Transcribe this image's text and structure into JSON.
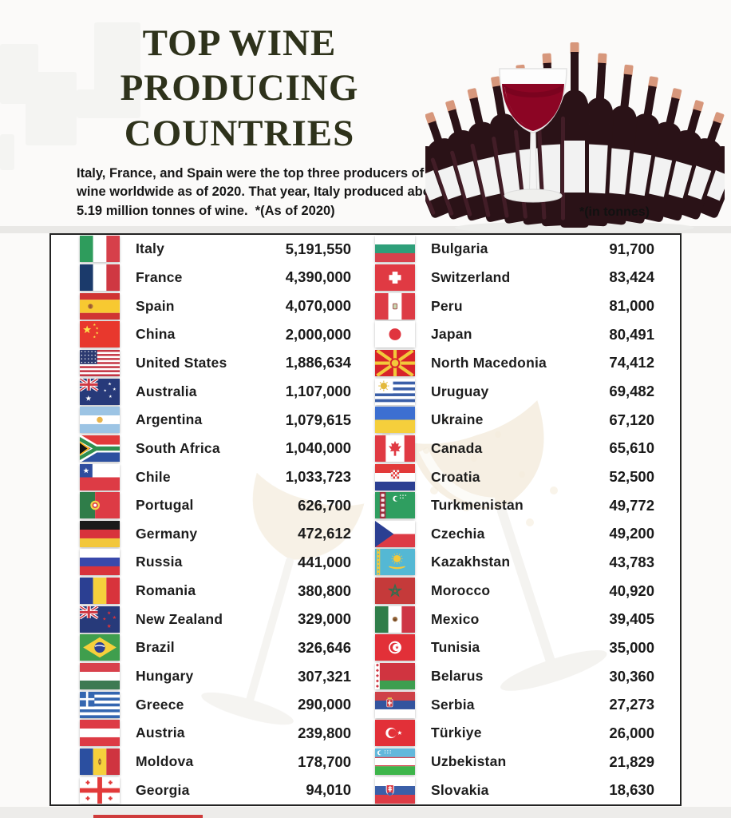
{
  "header": {
    "title_lines": [
      "TOP WINE",
      "PRODUCING",
      "COUNTRIES"
    ],
    "subtitle": "Italy, France, and Spain were the top three producers of wine worldwide as of 2020. That year, Italy produced about 5.19 million tonnes of wine.",
    "subtitle_note": "*(As of 2020)",
    "unit_note": "*(in tonnes)"
  },
  "colors": {
    "title": "#2e321b",
    "text": "#1d1d1d",
    "wine_red": "#8c0524",
    "panel_border": "#232323"
  },
  "table": {
    "left": [
      {
        "country": "Italy",
        "value": "5,191,550",
        "flag": "italy"
      },
      {
        "country": "France",
        "value": "4,390,000",
        "flag": "france"
      },
      {
        "country": "Spain",
        "value": "4,070,000",
        "flag": "spain"
      },
      {
        "country": "China",
        "value": "2,000,000",
        "flag": "china"
      },
      {
        "country": "United States",
        "value": "1,886,634",
        "flag": "united-states"
      },
      {
        "country": "Australia",
        "value": "1,107,000",
        "flag": "australia"
      },
      {
        "country": "Argentina",
        "value": "1,079,615",
        "flag": "argentina"
      },
      {
        "country": "South Africa",
        "value": "1,040,000",
        "flag": "south-africa"
      },
      {
        "country": "Chile",
        "value": "1,033,723",
        "flag": "chile"
      },
      {
        "country": "Portugal",
        "value": "626,700",
        "flag": "portugal"
      },
      {
        "country": "Germany",
        "value": "472,612",
        "flag": "germany"
      },
      {
        "country": "Russia",
        "value": "441,000",
        "flag": "russia"
      },
      {
        "country": "Romania",
        "value": "380,800",
        "flag": "romania"
      },
      {
        "country": "New Zealand",
        "value": "329,000",
        "flag": "new-zealand"
      },
      {
        "country": "Brazil",
        "value": "326,646",
        "flag": "brazil"
      },
      {
        "country": "Hungary",
        "value": "307,321",
        "flag": "hungary"
      },
      {
        "country": "Greece",
        "value": "290,000",
        "flag": "greece"
      },
      {
        "country": "Austria",
        "value": "239,800",
        "flag": "austria"
      },
      {
        "country": "Moldova",
        "value": "178,700",
        "flag": "moldova"
      },
      {
        "country": "Georgia",
        "value": "94,010",
        "flag": "georgia"
      }
    ],
    "right": [
      {
        "country": "Bulgaria",
        "value": "91,700",
        "flag": "bulgaria"
      },
      {
        "country": "Switzerland",
        "value": "83,424",
        "flag": "switzerland"
      },
      {
        "country": "Peru",
        "value": "81,000",
        "flag": "peru"
      },
      {
        "country": "Japan",
        "value": "80,491",
        "flag": "japan"
      },
      {
        "country": "North Macedonia",
        "value": "74,412",
        "flag": "north-macedonia"
      },
      {
        "country": "Uruguay",
        "value": "69,482",
        "flag": "uruguay"
      },
      {
        "country": "Ukraine",
        "value": "67,120",
        "flag": "ukraine"
      },
      {
        "country": "Canada",
        "value": "65,610",
        "flag": "canada"
      },
      {
        "country": "Croatia",
        "value": "52,500",
        "flag": "croatia"
      },
      {
        "country": "Turkmenistan",
        "value": "49,772",
        "flag": "turkmenistan"
      },
      {
        "country": "Czechia",
        "value": "49,200",
        "flag": "czechia"
      },
      {
        "country": "Kazakhstan",
        "value": "43,783",
        "flag": "kazakhstan"
      },
      {
        "country": "Morocco",
        "value": "40,920",
        "flag": "morocco"
      },
      {
        "country": "Mexico",
        "value": "39,405",
        "flag": "mexico"
      },
      {
        "country": "Tunisia",
        "value": "35,000",
        "flag": "tunisia"
      },
      {
        "country": "Belarus",
        "value": "30,360",
        "flag": "belarus"
      },
      {
        "country": "Serbia",
        "value": "27,273",
        "flag": "serbia"
      },
      {
        "country": "Türkiye",
        "value": "26,000",
        "flag": "turkiye"
      },
      {
        "country": "Uzbekistan",
        "value": "21,829",
        "flag": "uzbekistan"
      },
      {
        "country": "Slovakia",
        "value": "18,630",
        "flag": "slovakia"
      }
    ]
  },
  "chart_data": {
    "type": "table",
    "title": "Top Wine Producing Countries",
    "unit": "tonnes",
    "as_of": "2020",
    "countries": [
      "Italy",
      "France",
      "Spain",
      "China",
      "United States",
      "Australia",
      "Argentina",
      "South Africa",
      "Chile",
      "Portugal",
      "Germany",
      "Russia",
      "Romania",
      "New Zealand",
      "Brazil",
      "Hungary",
      "Greece",
      "Austria",
      "Moldova",
      "Georgia",
      "Bulgaria",
      "Switzerland",
      "Peru",
      "Japan",
      "North Macedonia",
      "Uruguay",
      "Ukraine",
      "Canada",
      "Croatia",
      "Turkmenistan",
      "Czechia",
      "Kazakhstan",
      "Morocco",
      "Mexico",
      "Tunisia",
      "Belarus",
      "Serbia",
      "Türkiye",
      "Uzbekistan",
      "Slovakia"
    ],
    "values_tonnes": [
      5191550,
      4390000,
      4070000,
      2000000,
      1886634,
      1107000,
      1079615,
      1040000,
      1033723,
      626700,
      472612,
      441000,
      380800,
      329000,
      326646,
      307321,
      290000,
      239800,
      178700,
      94010,
      91700,
      83424,
      81000,
      80491,
      74412,
      69482,
      67120,
      65610,
      52500,
      49772,
      49200,
      43783,
      40920,
      39405,
      35000,
      30360,
      27273,
      26000,
      21829,
      18630
    ]
  }
}
